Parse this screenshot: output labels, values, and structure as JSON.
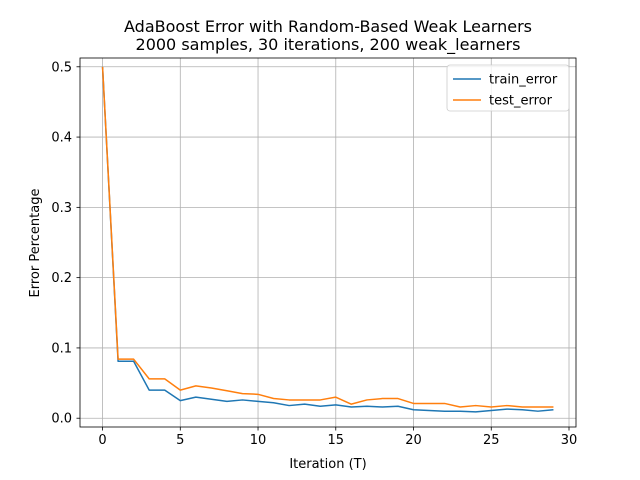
{
  "chart_data": {
    "type": "line",
    "title": "AdaBoost Error with Random-Based Weak Learners",
    "subtitle": "2000 samples, 30 iterations, 200 weak_learners",
    "xlabel": "Iteration (T)",
    "ylabel": "Error Percentage",
    "xlim": [
      -1.45,
      30.45
    ],
    "ylim": [
      -0.0125,
      0.5125
    ],
    "xticks": [
      0,
      5,
      10,
      15,
      20,
      25,
      30
    ],
    "yticks": [
      0.0,
      0.1,
      0.2,
      0.3,
      0.4,
      0.5
    ],
    "xtick_labels": [
      "0",
      "5",
      "10",
      "15",
      "20",
      "25",
      "30"
    ],
    "ytick_labels": [
      "0.0",
      "0.1",
      "0.2",
      "0.3",
      "0.4",
      "0.5"
    ],
    "grid": true,
    "legend": "top-right",
    "x": [
      0,
      1,
      2,
      3,
      4,
      5,
      6,
      7,
      8,
      9,
      10,
      11,
      12,
      13,
      14,
      15,
      16,
      17,
      18,
      19,
      20,
      21,
      22,
      23,
      24,
      25,
      26,
      27,
      28,
      29
    ],
    "series": [
      {
        "name": "train_error",
        "color": "#1f77b4",
        "values": [
          0.5,
          0.081,
          0.081,
          0.04,
          0.04,
          0.025,
          0.03,
          0.027,
          0.024,
          0.026,
          0.024,
          0.022,
          0.018,
          0.02,
          0.017,
          0.019,
          0.016,
          0.017,
          0.016,
          0.017,
          0.012,
          0.011,
          0.01,
          0.01,
          0.009,
          0.011,
          0.013,
          0.012,
          0.01,
          0.012
        ]
      },
      {
        "name": "test_error",
        "color": "#ff7f0e",
        "values": [
          0.5,
          0.084,
          0.084,
          0.056,
          0.056,
          0.04,
          0.046,
          0.043,
          0.039,
          0.035,
          0.034,
          0.028,
          0.026,
          0.026,
          0.026,
          0.03,
          0.02,
          0.026,
          0.028,
          0.028,
          0.021,
          0.021,
          0.021,
          0.016,
          0.018,
          0.016,
          0.018,
          0.016,
          0.016,
          0.016
        ]
      }
    ]
  }
}
